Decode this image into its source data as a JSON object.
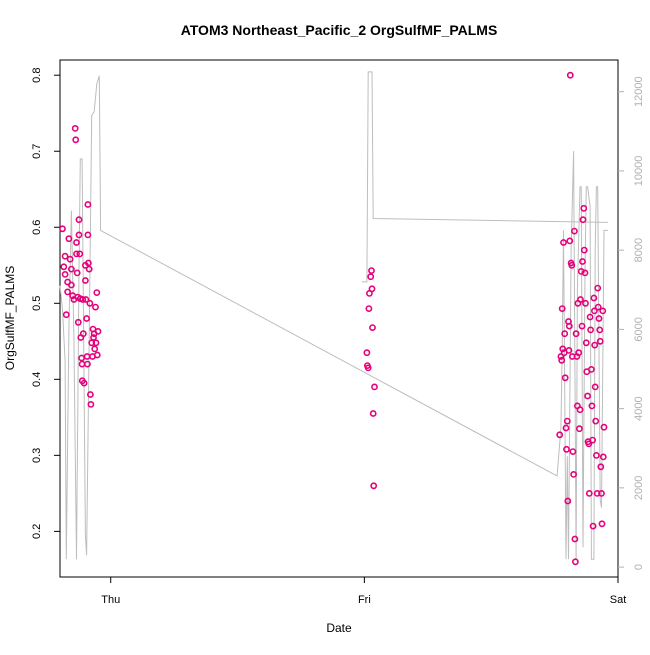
{
  "chart_data": {
    "type": "scatter",
    "title": "ATOM3 Northeast_Pacific_2 OrgSulfMF_PALMS",
    "xlabel": "Date",
    "ylabel": "OrgSulfMF_PALMS",
    "x_ticks": [
      "Thu",
      "Fri",
      "Sat"
    ],
    "ylim": [
      0.14,
      0.82
    ],
    "y_ticks": [
      "0.2",
      "0.3",
      "0.4",
      "0.5",
      "0.6",
      "0.7",
      "0.8"
    ],
    "y2lim": [
      -250,
      12800
    ],
    "y2_ticks": [
      "0",
      "2000",
      "4000",
      "6000",
      "8000",
      "10000",
      "12000"
    ],
    "point_color": "#e6007a",
    "line_color": "#bdbdbd",
    "series": [
      {
        "kind": "points",
        "points": [
          {
            "x": 0.81,
            "y": 0.598
          },
          {
            "x": 0.82,
            "y": 0.562
          },
          {
            "x": 0.815,
            "y": 0.548
          },
          {
            "x": 0.82,
            "y": 0.538
          },
          {
            "x": 0.83,
            "y": 0.528
          },
          {
            "x": 0.83,
            "y": 0.515
          },
          {
            "x": 0.825,
            "y": 0.485
          },
          {
            "x": 0.835,
            "y": 0.585
          },
          {
            "x": 0.84,
            "y": 0.558
          },
          {
            "x": 0.845,
            "y": 0.545
          },
          {
            "x": 0.845,
            "y": 0.524
          },
          {
            "x": 0.85,
            "y": 0.51
          },
          {
            "x": 0.855,
            "y": 0.505
          },
          {
            "x": 0.86,
            "y": 0.73
          },
          {
            "x": 0.862,
            "y": 0.715
          },
          {
            "x": 0.865,
            "y": 0.58
          },
          {
            "x": 0.865,
            "y": 0.565
          },
          {
            "x": 0.868,
            "y": 0.54
          },
          {
            "x": 0.87,
            "y": 0.508
          },
          {
            "x": 0.872,
            "y": 0.475
          },
          {
            "x": 0.875,
            "y": 0.61
          },
          {
            "x": 0.875,
            "y": 0.59
          },
          {
            "x": 0.878,
            "y": 0.565
          },
          {
            "x": 0.88,
            "y": 0.506
          },
          {
            "x": 0.882,
            "y": 0.455
          },
          {
            "x": 0.885,
            "y": 0.428
          },
          {
            "x": 0.887,
            "y": 0.42
          },
          {
            "x": 0.888,
            "y": 0.398
          },
          {
            "x": 0.89,
            "y": 0.505
          },
          {
            "x": 0.892,
            "y": 0.46
          },
          {
            "x": 0.895,
            "y": 0.395
          },
          {
            "x": 0.9,
            "y": 0.55
          },
          {
            "x": 0.9,
            "y": 0.53
          },
          {
            "x": 0.902,
            "y": 0.505
          },
          {
            "x": 0.905,
            "y": 0.48
          },
          {
            "x": 0.907,
            "y": 0.43
          },
          {
            "x": 0.908,
            "y": 0.42
          },
          {
            "x": 0.91,
            "y": 0.63
          },
          {
            "x": 0.91,
            "y": 0.59
          },
          {
            "x": 0.912,
            "y": 0.553
          },
          {
            "x": 0.915,
            "y": 0.545
          },
          {
            "x": 0.918,
            "y": 0.5
          },
          {
            "x": 0.92,
            "y": 0.38
          },
          {
            "x": 0.922,
            "y": 0.367
          },
          {
            "x": 0.925,
            "y": 0.448
          },
          {
            "x": 0.928,
            "y": 0.43
          },
          {
            "x": 0.93,
            "y": 0.466
          },
          {
            "x": 0.932,
            "y": 0.455
          },
          {
            "x": 0.935,
            "y": 0.46
          },
          {
            "x": 0.937,
            "y": 0.44
          },
          {
            "x": 0.94,
            "y": 0.495
          },
          {
            "x": 0.942,
            "y": 0.448
          },
          {
            "x": 0.945,
            "y": 0.514
          },
          {
            "x": 0.947,
            "y": 0.432
          },
          {
            "x": 0.95,
            "y": 0.463
          },
          {
            "x": 2.01,
            "y": 0.435
          },
          {
            "x": 2.012,
            "y": 0.418
          },
          {
            "x": 2.015,
            "y": 0.415
          },
          {
            "x": 2.018,
            "y": 0.493
          },
          {
            "x": 2.02,
            "y": 0.513
          },
          {
            "x": 2.025,
            "y": 0.535
          },
          {
            "x": 2.028,
            "y": 0.543
          },
          {
            "x": 2.03,
            "y": 0.519
          },
          {
            "x": 2.032,
            "y": 0.468
          },
          {
            "x": 2.035,
            "y": 0.355
          },
          {
            "x": 2.037,
            "y": 0.26
          },
          {
            "x": 2.04,
            "y": 0.39
          },
          {
            "x": 2.77,
            "y": 0.327
          },
          {
            "x": 2.775,
            "y": 0.43
          },
          {
            "x": 2.778,
            "y": 0.425
          },
          {
            "x": 2.78,
            "y": 0.493
          },
          {
            "x": 2.782,
            "y": 0.44
          },
          {
            "x": 2.785,
            "y": 0.58
          },
          {
            "x": 2.788,
            "y": 0.435
          },
          {
            "x": 2.79,
            "y": 0.46
          },
          {
            "x": 2.792,
            "y": 0.402
          },
          {
            "x": 2.795,
            "y": 0.336
          },
          {
            "x": 2.797,
            "y": 0.308
          },
          {
            "x": 2.8,
            "y": 0.345
          },
          {
            "x": 2.802,
            "y": 0.24
          },
          {
            "x": 2.805,
            "y": 0.476
          },
          {
            "x": 2.807,
            "y": 0.438
          },
          {
            "x": 2.808,
            "y": 0.47
          },
          {
            "x": 2.81,
            "y": 0.582
          },
          {
            "x": 2.812,
            "y": 0.8
          },
          {
            "x": 2.815,
            "y": 0.553
          },
          {
            "x": 2.818,
            "y": 0.55
          },
          {
            "x": 2.82,
            "y": 0.43
          },
          {
            "x": 2.822,
            "y": 0.305
          },
          {
            "x": 2.825,
            "y": 0.275
          },
          {
            "x": 2.828,
            "y": 0.595
          },
          {
            "x": 2.83,
            "y": 0.19
          },
          {
            "x": 2.832,
            "y": 0.16
          },
          {
            "x": 2.835,
            "y": 0.46
          },
          {
            "x": 2.838,
            "y": 0.43
          },
          {
            "x": 2.84,
            "y": 0.365
          },
          {
            "x": 2.842,
            "y": 0.5
          },
          {
            "x": 2.845,
            "y": 0.435
          },
          {
            "x": 2.848,
            "y": 0.335
          },
          {
            "x": 2.85,
            "y": 0.36
          },
          {
            "x": 2.852,
            "y": 0.505
          },
          {
            "x": 2.855,
            "y": 0.542
          },
          {
            "x": 2.858,
            "y": 0.47
          },
          {
            "x": 2.86,
            "y": 0.555
          },
          {
            "x": 2.862,
            "y": 0.61
          },
          {
            "x": 2.865,
            "y": 0.625
          },
          {
            "x": 2.867,
            "y": 0.57
          },
          {
            "x": 2.87,
            "y": 0.54
          },
          {
            "x": 2.872,
            "y": 0.5
          },
          {
            "x": 2.875,
            "y": 0.448
          },
          {
            "x": 2.877,
            "y": 0.41
          },
          {
            "x": 2.88,
            "y": 0.378
          },
          {
            "x": 2.882,
            "y": 0.318
          },
          {
            "x": 2.885,
            "y": 0.315
          },
          {
            "x": 2.887,
            "y": 0.25
          },
          {
            "x": 2.89,
            "y": 0.482
          },
          {
            "x": 2.892,
            "y": 0.465
          },
          {
            "x": 2.895,
            "y": 0.413
          },
          {
            "x": 2.897,
            "y": 0.365
          },
          {
            "x": 2.9,
            "y": 0.32
          },
          {
            "x": 2.902,
            "y": 0.207
          },
          {
            "x": 2.905,
            "y": 0.507
          },
          {
            "x": 2.907,
            "y": 0.49
          },
          {
            "x": 2.908,
            "y": 0.445
          },
          {
            "x": 2.91,
            "y": 0.39
          },
          {
            "x": 2.912,
            "y": 0.345
          },
          {
            "x": 2.915,
            "y": 0.3
          },
          {
            "x": 2.918,
            "y": 0.25
          },
          {
            "x": 2.92,
            "y": 0.52
          },
          {
            "x": 2.922,
            "y": 0.495
          },
          {
            "x": 2.925,
            "y": 0.48
          },
          {
            "x": 2.928,
            "y": 0.465
          },
          {
            "x": 2.93,
            "y": 0.45
          },
          {
            "x": 2.932,
            "y": 0.285
          },
          {
            "x": 2.935,
            "y": 0.25
          },
          {
            "x": 2.937,
            "y": 0.21
          },
          {
            "x": 2.94,
            "y": 0.49
          },
          {
            "x": 2.942,
            "y": 0.298
          },
          {
            "x": 2.945,
            "y": 0.337
          }
        ]
      },
      {
        "kind": "line",
        "axis": "right",
        "points": [
          {
            "x": 0.8,
            "y": 7100
          },
          {
            "x": 0.81,
            "y": 6500
          },
          {
            "x": 0.82,
            "y": 5200
          },
          {
            "x": 0.825,
            "y": 200
          },
          {
            "x": 0.835,
            "y": 6000
          },
          {
            "x": 0.845,
            "y": 9000
          },
          {
            "x": 0.855,
            "y": 5800
          },
          {
            "x": 0.865,
            "y": 200
          },
          {
            "x": 0.875,
            "y": 7500
          },
          {
            "x": 0.88,
            "y": 10300
          },
          {
            "x": 0.887,
            "y": 10300
          },
          {
            "x": 0.9,
            "y": 800
          },
          {
            "x": 0.905,
            "y": 300
          },
          {
            "x": 0.915,
            "y": 5800
          },
          {
            "x": 0.925,
            "y": 11400
          },
          {
            "x": 0.935,
            "y": 11500
          },
          {
            "x": 0.945,
            "y": 12200
          },
          {
            "x": 0.955,
            "y": 12400
          },
          {
            "x": 0.96,
            "y": 8500
          },
          {
            "x": 2.76,
            "y": 2300
          },
          {
            "x": 2.775,
            "y": 3500
          },
          {
            "x": 2.78,
            "y": 5500
          },
          {
            "x": 2.785,
            "y": 8500
          },
          {
            "x": 2.795,
            "y": 200
          },
          {
            "x": 2.8,
            "y": 2800
          },
          {
            "x": 2.805,
            "y": 200
          },
          {
            "x": 2.815,
            "y": 8000
          },
          {
            "x": 2.825,
            "y": 10500
          },
          {
            "x": 2.835,
            "y": 200
          },
          {
            "x": 2.84,
            "y": 7000
          },
          {
            "x": 2.85,
            "y": 9600
          },
          {
            "x": 2.855,
            "y": 9600
          },
          {
            "x": 2.862,
            "y": 500
          },
          {
            "x": 2.87,
            "y": 7500
          },
          {
            "x": 2.875,
            "y": 9600
          },
          {
            "x": 2.88,
            "y": 9600
          },
          {
            "x": 2.89,
            "y": 9100
          },
          {
            "x": 2.895,
            "y": 200
          },
          {
            "x": 2.905,
            "y": 200
          },
          {
            "x": 2.91,
            "y": 8000
          },
          {
            "x": 2.915,
            "y": 9600
          },
          {
            "x": 2.92,
            "y": 9600
          },
          {
            "x": 2.93,
            "y": 1700
          },
          {
            "x": 2.935,
            "y": 1500
          },
          {
            "x": 2.945,
            "y": 8500
          },
          {
            "x": 2.96,
            "y": 8500
          }
        ]
      },
      {
        "kind": "line",
        "axis": "right",
        "points": [
          {
            "x": 1.99,
            "y": 7200
          },
          {
            "x": 2.01,
            "y": 7200
          },
          {
            "x": 2.015,
            "y": 12500
          },
          {
            "x": 2.03,
            "y": 12500
          },
          {
            "x": 2.035,
            "y": 8800
          },
          {
            "x": 2.96,
            "y": 8700
          }
        ]
      }
    ]
  }
}
